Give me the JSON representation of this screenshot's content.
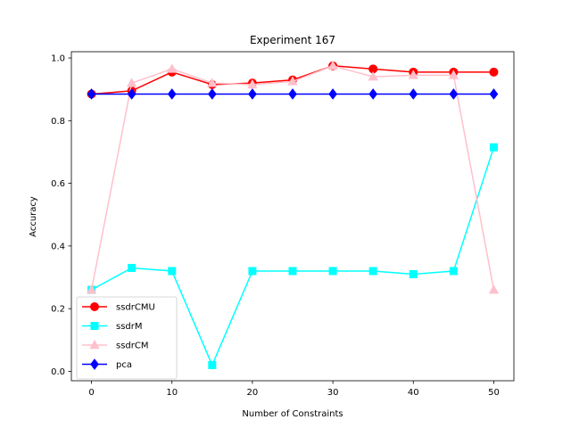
{
  "chart_data": {
    "type": "line",
    "title": "Experiment 167",
    "xlabel": "Number of Constraints",
    "ylabel": "Accuracy",
    "x": [
      0,
      5,
      10,
      15,
      20,
      25,
      30,
      35,
      40,
      45,
      50
    ],
    "xticks": [
      0,
      10,
      20,
      30,
      40,
      50
    ],
    "yticks": [
      0.0,
      0.2,
      0.4,
      0.6,
      0.8,
      1.0
    ],
    "ytick_labels": [
      "0.0",
      "0.2",
      "0.4",
      "0.6",
      "0.8",
      "1.0"
    ],
    "xlim": [
      -2.5,
      52.5
    ],
    "ylim": [
      -0.03,
      1.02
    ],
    "grid": false,
    "legend_position": "lower-left",
    "series": [
      {
        "name": "ssdrCMU",
        "color": "#ff0000",
        "marker": "circle",
        "values": [
          0.885,
          0.895,
          0.955,
          0.915,
          0.92,
          0.93,
          0.975,
          0.965,
          0.955,
          0.955,
          0.955
        ]
      },
      {
        "name": "ssdrM",
        "color": "#00ffff",
        "marker": "square",
        "values": [
          0.26,
          0.33,
          0.32,
          0.02,
          0.32,
          0.32,
          0.32,
          0.32,
          0.31,
          0.32,
          0.715
        ]
      },
      {
        "name": "ssdrCM",
        "color": "#ffc0cb",
        "marker": "triangle",
        "values": [
          0.26,
          0.92,
          0.965,
          0.92,
          0.915,
          0.925,
          0.975,
          0.94,
          0.945,
          0.945,
          0.26
        ]
      },
      {
        "name": "pca",
        "color": "#0000ff",
        "marker": "diamond",
        "values": [
          0.885,
          0.885,
          0.885,
          0.885,
          0.885,
          0.885,
          0.885,
          0.885,
          0.885,
          0.885,
          0.885
        ]
      }
    ]
  }
}
